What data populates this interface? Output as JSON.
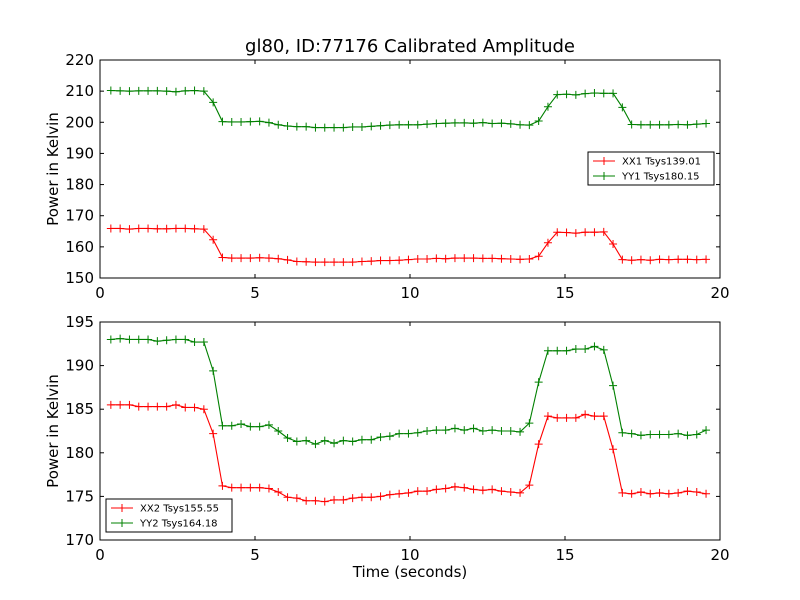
{
  "chart_data": [
    {
      "type": "line",
      "title": "gl80, ID:77176 Calibrated Amplitude",
      "xlabel": "",
      "ylabel": "Power in Kelvin",
      "xlim": [
        0,
        20
      ],
      "ylim": [
        150,
        220
      ],
      "xticks": [
        0,
        5,
        10,
        15,
        20
      ],
      "yticks": [
        150,
        160,
        170,
        180,
        190,
        200,
        210,
        220
      ],
      "legend_position": "center-right",
      "x": [
        0.35,
        0.65,
        0.95,
        1.25,
        1.55,
        1.85,
        2.15,
        2.45,
        2.75,
        3.05,
        3.35,
        3.65,
        3.95,
        4.25,
        4.55,
        4.85,
        5.15,
        5.45,
        5.75,
        6.05,
        6.35,
        6.65,
        6.95,
        7.25,
        7.55,
        7.85,
        8.15,
        8.45,
        8.75,
        9.05,
        9.35,
        9.65,
        9.95,
        10.25,
        10.55,
        10.85,
        11.15,
        11.45,
        11.75,
        12.05,
        12.35,
        12.65,
        12.95,
        13.25,
        13.55,
        13.85,
        14.15,
        14.45,
        14.75,
        15.05,
        15.35,
        15.65,
        15.95,
        16.25,
        16.55,
        16.85,
        17.15,
        17.45,
        17.75,
        18.05,
        18.35,
        18.65,
        18.95,
        19.25,
        19.55
      ],
      "series": [
        {
          "name": "XX1 Tsys139.01",
          "color": "#ff0000",
          "values": [
            165.9,
            165.9,
            165.7,
            165.9,
            165.9,
            165.8,
            165.8,
            165.9,
            165.9,
            165.8,
            165.7,
            162.3,
            156.6,
            156.4,
            156.4,
            156.4,
            156.5,
            156.4,
            156.2,
            155.8,
            155.3,
            155.2,
            155.1,
            155.1,
            155.1,
            155.1,
            155.1,
            155.3,
            155.4,
            155.6,
            155.6,
            155.7,
            155.9,
            156.1,
            156.1,
            156.3,
            156.2,
            156.4,
            156.4,
            156.4,
            156.3,
            156.3,
            156.2,
            156.1,
            156.0,
            156.1,
            157.0,
            161.3,
            164.7,
            164.6,
            164.4,
            164.7,
            164.7,
            164.8,
            160.9,
            155.9,
            155.7,
            155.9,
            155.7,
            156.0,
            155.9,
            156.0,
            156.0,
            155.9,
            156.0
          ]
        },
        {
          "name": "YY1 Tsys180.15",
          "color": "#008000",
          "values": [
            210.2,
            210.1,
            210.0,
            210.1,
            210.1,
            210.1,
            210.0,
            209.8,
            210.1,
            210.2,
            210.0,
            206.4,
            200.2,
            200.1,
            200.1,
            200.2,
            200.3,
            199.9,
            199.2,
            198.8,
            198.6,
            198.6,
            198.3,
            198.3,
            198.3,
            198.3,
            198.5,
            198.5,
            198.7,
            198.9,
            199.1,
            199.2,
            199.2,
            199.2,
            199.4,
            199.6,
            199.7,
            199.8,
            199.8,
            199.7,
            199.9,
            199.6,
            199.7,
            199.5,
            199.2,
            199.1,
            200.4,
            205.0,
            208.9,
            209.0,
            208.8,
            209.2,
            209.4,
            209.3,
            209.3,
            204.8,
            199.3,
            199.2,
            199.2,
            199.2,
            199.2,
            199.3,
            199.2,
            199.4,
            199.6
          ]
        }
      ]
    },
    {
      "type": "line",
      "title": "",
      "xlabel": "Time (seconds)",
      "ylabel": "Power in Kelvin",
      "xlim": [
        0,
        20
      ],
      "ylim": [
        170,
        195
      ],
      "xticks": [
        0,
        5,
        10,
        15,
        20
      ],
      "yticks": [
        170,
        175,
        180,
        185,
        190,
        195
      ],
      "legend_position": "lower-left",
      "x": [
        0.35,
        0.65,
        0.95,
        1.25,
        1.55,
        1.85,
        2.15,
        2.45,
        2.75,
        3.05,
        3.35,
        3.65,
        3.95,
        4.25,
        4.55,
        4.85,
        5.15,
        5.45,
        5.75,
        6.05,
        6.35,
        6.65,
        6.95,
        7.25,
        7.55,
        7.85,
        8.15,
        8.45,
        8.75,
        9.05,
        9.35,
        9.65,
        9.95,
        10.25,
        10.55,
        10.85,
        11.15,
        11.45,
        11.75,
        12.05,
        12.35,
        12.65,
        12.95,
        13.25,
        13.55,
        13.85,
        14.15,
        14.45,
        14.75,
        15.05,
        15.35,
        15.65,
        15.95,
        16.25,
        16.55,
        16.85,
        17.15,
        17.45,
        17.75,
        18.05,
        18.35,
        18.65,
        18.95,
        19.25,
        19.55
      ],
      "series": [
        {
          "name": "XX2 Tsys155.55",
          "color": "#ff0000",
          "values": [
            185.5,
            185.5,
            185.5,
            185.3,
            185.3,
            185.3,
            185.3,
            185.5,
            185.2,
            185.2,
            185.0,
            182.2,
            176.2,
            176.0,
            176.0,
            176.0,
            176.0,
            175.9,
            175.5,
            174.9,
            174.8,
            174.5,
            174.5,
            174.4,
            174.6,
            174.6,
            174.8,
            174.9,
            174.9,
            175.0,
            175.2,
            175.3,
            175.4,
            175.6,
            175.6,
            175.8,
            175.9,
            176.1,
            176.0,
            175.8,
            175.7,
            175.8,
            175.6,
            175.5,
            175.4,
            176.3,
            181.0,
            184.2,
            184.0,
            184.0,
            184.0,
            184.4,
            184.2,
            184.2,
            180.4,
            175.4,
            175.3,
            175.5,
            175.3,
            175.4,
            175.3,
            175.4,
            175.6,
            175.5,
            175.3
          ]
        },
        {
          "name": "YY2 Tsys164.18",
          "color": "#008000",
          "values": [
            193.0,
            193.1,
            193.0,
            193.0,
            193.0,
            192.8,
            192.9,
            193.0,
            193.0,
            192.7,
            192.7,
            189.4,
            183.1,
            183.1,
            183.3,
            183.0,
            183.0,
            183.2,
            182.5,
            181.7,
            181.3,
            181.4,
            181.0,
            181.4,
            181.1,
            181.4,
            181.3,
            181.5,
            181.5,
            181.8,
            181.9,
            182.2,
            182.2,
            182.3,
            182.5,
            182.6,
            182.6,
            182.8,
            182.6,
            182.8,
            182.5,
            182.6,
            182.5,
            182.5,
            182.4,
            183.4,
            188.1,
            191.7,
            191.7,
            191.7,
            191.9,
            191.9,
            192.2,
            191.8,
            187.7,
            182.3,
            182.2,
            182.0,
            182.1,
            182.1,
            182.1,
            182.2,
            182.0,
            182.1,
            182.6
          ]
        }
      ]
    }
  ]
}
